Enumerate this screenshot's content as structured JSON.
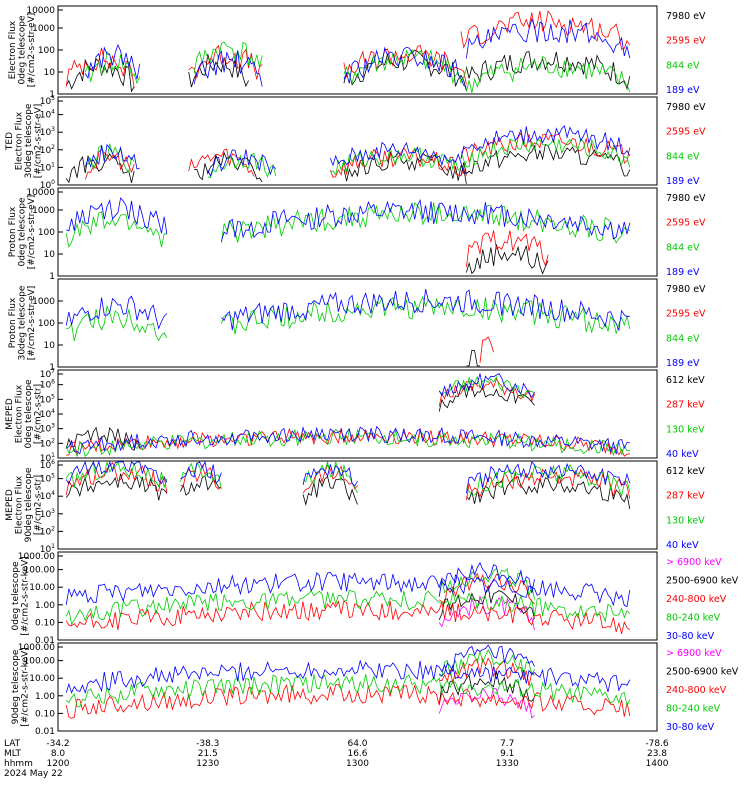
{
  "figure": {
    "footer": {
      "rows": [
        {
          "label": "LAT",
          "values": [
            "-34.2",
            "-38.3",
            "64.0",
            "7.7",
            "-78.6"
          ]
        },
        {
          "label": "MLT",
          "values": [
            "8.0",
            "21.5",
            "16.6",
            "9.1",
            "23.8"
          ]
        },
        {
          "label": "hhmm",
          "values": [
            "1200",
            "1230",
            "1300",
            "1330",
            "1400"
          ]
        }
      ],
      "date": "2024 May 22"
    }
  },
  "chart_data": [
    {
      "type": "line",
      "name": "ted-electron-0deg",
      "scale": "log",
      "ylabel": [
        "Electron Flux",
        "0deg telescope",
        "[#/cm2-s-str-eV]"
      ],
      "yticks": [
        "1",
        "10",
        "100",
        "1000",
        "10000"
      ],
      "ylim": [
        1,
        10000
      ],
      "legend": [
        {
          "text": "7980 eV",
          "color": "#000000"
        },
        {
          "text": "2595 eV",
          "color": "#ff0000"
        },
        {
          "text": "844 eV",
          "color": "#00cc00"
        },
        {
          "text": "189 eV",
          "color": "#0000ff"
        }
      ],
      "series_profile": [
        {
          "name": "7980 eV",
          "color": "#000000",
          "segments": [
            [
              3,
              28,
              1.0
            ],
            [
              48,
              70,
              1.1
            ],
            [
              105,
              150,
              1.2
            ],
            [
              150,
              210,
              1.3
            ]
          ]
        },
        {
          "name": "2595 eV",
          "color": "#ff0000",
          "segments": [
            [
              3,
              28,
              1.3
            ],
            [
              48,
              75,
              1.5
            ],
            [
              105,
              150,
              1.5
            ],
            [
              148,
              210,
              3.0
            ]
          ]
        },
        {
          "name": "844 eV",
          "color": "#00cc00",
          "segments": [
            [
              10,
              30,
              1.2
            ],
            [
              50,
              75,
              1.8
            ],
            [
              105,
              150,
              1.3
            ],
            [
              150,
              210,
              1.0
            ]
          ]
        },
        {
          "name": "189 eV",
          "color": "#0000ff",
          "segments": [
            [
              10,
              30,
              1.5
            ],
            [
              50,
              75,
              1.2
            ],
            [
              105,
              150,
              1.4
            ],
            [
              150,
              210,
              2.6
            ]
          ]
        }
      ]
    },
    {
      "type": "line",
      "name": "ted-electron-30deg",
      "scale": "log",
      "ylabel": [
        "TED",
        "Electron Flux",
        "30deg telescope",
        "[#/cm2-s-str-eV]"
      ],
      "yticks": [
        "10^0",
        "10^1",
        "10^2",
        "10^3",
        "10^4",
        "10^5"
      ],
      "ylim": [
        1,
        100000
      ],
      "legend": [
        {
          "text": "7980 eV",
          "color": "#000000"
        },
        {
          "text": "2595 eV",
          "color": "#ff0000"
        },
        {
          "text": "844 eV",
          "color": "#00cc00"
        },
        {
          "text": "189 eV",
          "color": "#0000ff"
        }
      ],
      "series_profile": [
        {
          "name": "7980 eV",
          "color": "#000000",
          "segments": [
            [
              3,
              28,
              1.0
            ],
            [
              50,
              75,
              1.0
            ],
            [
              105,
              150,
              1.1
            ],
            [
              148,
              210,
              1.5
            ]
          ]
        },
        {
          "name": "2595 eV",
          "color": "#ff0000",
          "segments": [
            [
              10,
              28,
              1.3
            ],
            [
              48,
              72,
              1.4
            ],
            [
              100,
              150,
              1.3
            ],
            [
              148,
              210,
              2.2
            ]
          ]
        },
        {
          "name": "844 eV",
          "color": "#00cc00",
          "segments": [
            [
              10,
              28,
              1.5
            ],
            [
              55,
              80,
              1.2
            ],
            [
              100,
              150,
              1.4
            ],
            [
              148,
              210,
              2.0
            ]
          ]
        },
        {
          "name": "189 eV",
          "color": "#0000ff",
          "segments": [
            [
              10,
              30,
              1.6
            ],
            [
              55,
              80,
              1.3
            ],
            [
              100,
              150,
              1.7
            ],
            [
              148,
              210,
              2.6
            ]
          ]
        }
      ]
    },
    {
      "type": "line",
      "name": "ted-proton-0deg",
      "scale": "log",
      "ylabel": [
        "Proton Flux",
        "0deg telescope",
        "[#/cm2-s-str-eV]"
      ],
      "yticks": [
        "1",
        "10",
        "100",
        "1000",
        "10000"
      ],
      "ylim": [
        1,
        10000
      ],
      "legend": [
        {
          "text": "7980 eV",
          "color": "#000000"
        },
        {
          "text": "2595 eV",
          "color": "#ff0000"
        },
        {
          "text": "844 eV",
          "color": "#00cc00"
        },
        {
          "text": "189 eV",
          "color": "#0000ff"
        }
      ],
      "series_profile": [
        {
          "name": "7980 eV",
          "color": "#000000",
          "segments": [
            [
              150,
              180,
              0.8
            ]
          ]
        },
        {
          "name": "2595 eV",
          "color": "#ff0000",
          "segments": [
            [
              150,
              180,
              1.4
            ]
          ]
        },
        {
          "name": "844 eV",
          "color": "#00cc00",
          "segments": [
            [
              3,
              40,
              2.2
            ],
            [
              60,
              210,
              2.5
            ]
          ]
        },
        {
          "name": "189 eV",
          "color": "#0000ff",
          "segments": [
            [
              3,
              40,
              2.7
            ],
            [
              60,
              210,
              2.6
            ]
          ]
        }
      ]
    },
    {
      "type": "line",
      "name": "ted-proton-30deg",
      "scale": "log",
      "ylabel": [
        "Proton Flux",
        "30deg telescope",
        "[#/cm2-s-str-eV]"
      ],
      "yticks": [
        "1",
        "10",
        "100",
        "1000"
      ],
      "ylim": [
        1,
        10000
      ],
      "legend": [
        {
          "text": "7980 eV",
          "color": "#000000"
        },
        {
          "text": "2595 eV",
          "color": "#ff0000"
        },
        {
          "text": "844 eV",
          "color": "#00cc00"
        },
        {
          "text": "189 eV",
          "color": "#0000ff"
        }
      ],
      "series_profile": [
        {
          "name": "7980 eV",
          "color": "#000000",
          "segments": [
            [
              150,
              155,
              0.2
            ]
          ]
        },
        {
          "name": "2595 eV",
          "color": "#ff0000",
          "segments": [
            [
              155,
              160,
              1.2
            ]
          ]
        },
        {
          "name": "844 eV",
          "color": "#00cc00",
          "segments": [
            [
              3,
              40,
              2.0
            ],
            [
              60,
              210,
              2.4
            ]
          ]
        },
        {
          "name": "189 eV",
          "color": "#0000ff",
          "segments": [
            [
              3,
              40,
              2.5
            ],
            [
              60,
              210,
              2.7
            ]
          ]
        }
      ]
    },
    {
      "type": "line",
      "name": "meped-electron-0deg",
      "scale": "log",
      "ylabel": [
        "MEPED",
        "Electron Flux",
        "0deg telescope",
        "[#/cm2-s-str]"
      ],
      "yticks": [
        "10^1",
        "10^2",
        "10^3",
        "10^4",
        "10^5",
        "10^6",
        "10^7"
      ],
      "ylim": [
        10,
        10000000
      ],
      "legend": [
        {
          "text": "612 keV",
          "color": "#000000"
        },
        {
          "text": "287 keV",
          "color": "#ff0000"
        },
        {
          "text": "130 keV",
          "color": "#00cc00"
        },
        {
          "text": "40 keV",
          "color": "#0000ff"
        }
      ],
      "series_profile": [
        {
          "name": "612 keV",
          "color": "#000000",
          "segments": [
            [
              3,
              30,
              2.3
            ],
            [
              140,
              175,
              5.3
            ]
          ]
        },
        {
          "name": "287 keV",
          "color": "#ff0000",
          "segments": [
            [
              3,
              210,
              2.2
            ],
            [
              140,
              175,
              5.6
            ]
          ]
        },
        {
          "name": "130 keV",
          "color": "#00cc00",
          "segments": [
            [
              3,
              210,
              2.1
            ],
            [
              140,
              175,
              5.8
            ]
          ]
        },
        {
          "name": "40 keV",
          "color": "#0000ff",
          "segments": [
            [
              3,
              210,
              2.3
            ],
            [
              140,
              175,
              6.0
            ]
          ]
        }
      ]
    },
    {
      "type": "line",
      "name": "meped-electron-90deg",
      "scale": "log",
      "ylabel": [
        "MEPED",
        "Electron Flux",
        "90deg telescope",
        "[#/cm2-s-str]"
      ],
      "yticks": [
        "10^1",
        "10^2",
        "10^3",
        "10^4",
        "10^5",
        "10^6"
      ],
      "ylim": [
        10,
        1000000
      ],
      "legend": [
        {
          "text": "612 keV",
          "color": "#000000"
        },
        {
          "text": "287 keV",
          "color": "#ff0000"
        },
        {
          "text": "130 keV",
          "color": "#00cc00"
        },
        {
          "text": "40 keV",
          "color": "#0000ff"
        }
      ],
      "series_profile": [
        {
          "name": "612 keV",
          "color": "#000000",
          "segments": [
            [
              3,
              40,
              4.6
            ],
            [
              45,
              60,
              4.6
            ],
            [
              90,
              110,
              4.4
            ],
            [
              150,
              210,
              4.4
            ]
          ]
        },
        {
          "name": "287 keV",
          "color": "#ff0000",
          "segments": [
            [
              3,
              40,
              5.1
            ],
            [
              45,
              60,
              5.0
            ],
            [
              90,
              110,
              5.0
            ],
            [
              150,
              210,
              4.8
            ]
          ]
        },
        {
          "name": "130 keV",
          "color": "#00cc00",
          "segments": [
            [
              3,
              40,
              5.3
            ],
            [
              45,
              60,
              5.2
            ],
            [
              90,
              110,
              5.2
            ],
            [
              150,
              210,
              5.0
            ]
          ]
        },
        {
          "name": "40 keV",
          "color": "#0000ff",
          "segments": [
            [
              3,
              40,
              5.6
            ],
            [
              45,
              60,
              5.4
            ],
            [
              90,
              110,
              5.4
            ],
            [
              150,
              210,
              5.3
            ]
          ]
        }
      ]
    },
    {
      "type": "line",
      "name": "meped-proton-0deg",
      "scale": "log",
      "ylabel": [
        "0deg telescope",
        "[#/cm2-s-str-keV]"
      ],
      "yticks": [
        "0.01",
        "0.10",
        "1.00",
        "10.00",
        "100.00",
        "1000.00"
      ],
      "ylim": [
        0.01,
        1000
      ],
      "legend": [
        {
          "text": "> 6900 keV",
          "color": "#ff00ff"
        },
        {
          "text": "2500-6900 keV",
          "color": "#000000"
        },
        {
          "text": "240-800 keV",
          "color": "#ff0000"
        },
        {
          "text": "80-240 keV",
          "color": "#00cc00"
        },
        {
          "text": "30-80 keV",
          "color": "#0000ff"
        }
      ],
      "series_profile": [
        {
          "name": "> 6900 keV",
          "color": "#ff00ff",
          "segments": [
            [
              140,
              175,
              -0.3
            ]
          ]
        },
        {
          "name": "2500-6900 keV",
          "color": "#000000",
          "segments": [
            [
              140,
              175,
              0.2
            ]
          ]
        },
        {
          "name": "240-800 keV",
          "color": "#ff0000",
          "segments": [
            [
              3,
              210,
              -0.6
            ],
            [
              140,
              175,
              1.0
            ]
          ]
        },
        {
          "name": "80-240 keV",
          "color": "#00cc00",
          "segments": [
            [
              3,
              210,
              0.0
            ],
            [
              140,
              175,
              1.4
            ]
          ]
        },
        {
          "name": "30-80 keV",
          "color": "#0000ff",
          "segments": [
            [
              3,
              210,
              1.0
            ],
            [
              140,
              175,
              1.6
            ]
          ]
        }
      ]
    },
    {
      "type": "line",
      "name": "meped-proton-90deg",
      "scale": "log",
      "ylabel": [
        "90deg telescope",
        "[#/cm2-s-str-keV]"
      ],
      "yticks": [
        "0.01",
        "0.10",
        "1.00",
        "10.00",
        "100.00",
        "1000.00"
      ],
      "ylim": [
        0.01,
        1000
      ],
      "legend": [
        {
          "text": "> 6900 keV",
          "color": "#ff00ff"
        },
        {
          "text": "2500-6900 keV",
          "color": "#000000"
        },
        {
          "text": "240-800 keV",
          "color": "#ff0000"
        },
        {
          "text": "80-240 keV",
          "color": "#00cc00"
        },
        {
          "text": "30-80 keV",
          "color": "#0000ff"
        }
      ],
      "series_profile": [
        {
          "name": "> 6900 keV",
          "color": "#ff00ff",
          "segments": [
            [
              140,
              175,
              -0.3
            ]
          ]
        },
        {
          "name": "2500-6900 keV",
          "color": "#000000",
          "segments": [
            [
              140,
              175,
              0.6
            ]
          ]
        },
        {
          "name": "240-800 keV",
          "color": "#ff0000",
          "segments": [
            [
              3,
              210,
              -0.2
            ],
            [
              140,
              175,
              1.3
            ]
          ]
        },
        {
          "name": "80-240 keV",
          "color": "#00cc00",
          "segments": [
            [
              3,
              210,
              0.4
            ],
            [
              140,
              175,
              1.8
            ]
          ]
        },
        {
          "name": "30-80 keV",
          "color": "#0000ff",
          "segments": [
            [
              3,
              210,
              1.2
            ],
            [
              140,
              175,
              2.1
            ]
          ]
        }
      ]
    }
  ]
}
